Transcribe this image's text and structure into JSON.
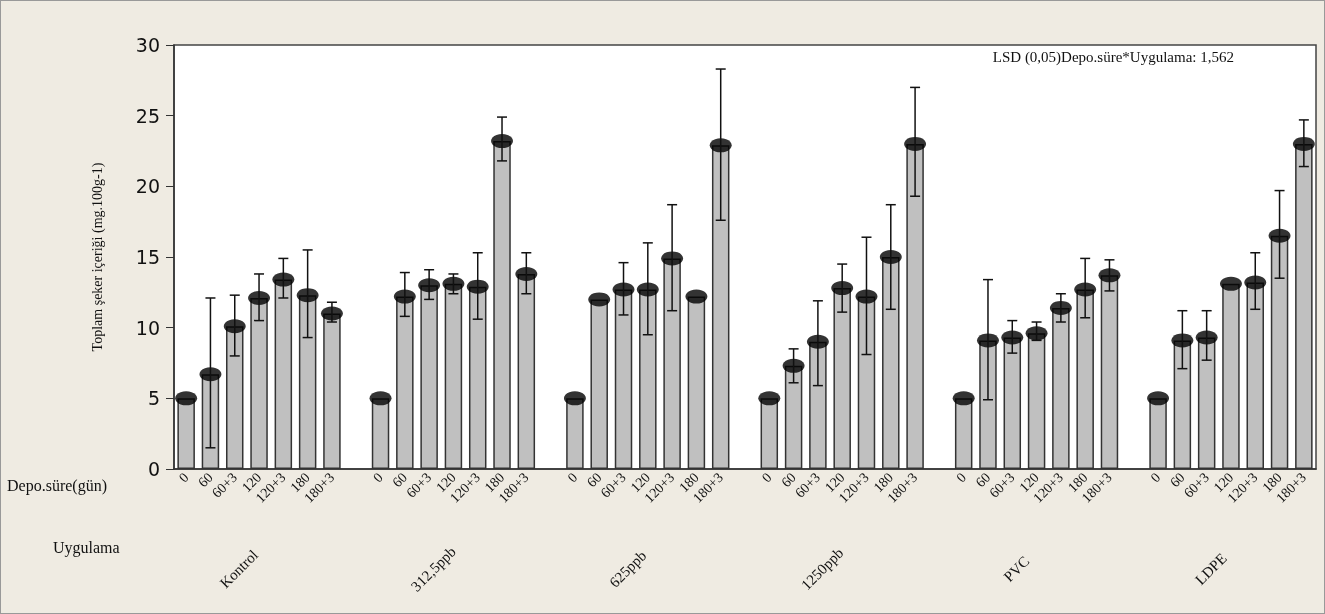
{
  "chart_data": {
    "type": "bar",
    "ylabel": "Toplam şeker içeriği (mg.100g-1)",
    "xlabel": "Depo.süre(gün)",
    "annotations": [
      "LSD (0,05)Depo.süre*Uygulama: 1,562",
      "Uygulama",
      "Kontrol",
      "312,5ppb",
      "625ppb",
      "1250ppb",
      "PVC",
      "LDPE"
    ],
    "categories": [
      "0",
      "60",
      "60+3",
      "120",
      "120+3",
      "180",
      "180+3",
      null,
      "0",
      "60",
      "60+3",
      "120",
      "120+3",
      "180",
      "180+3",
      null,
      "0",
      "60",
      "60+3",
      "120",
      "120+3",
      "180",
      "180+3",
      null,
      "0",
      "60",
      "60+3",
      "120",
      "120+3",
      "180",
      "180+3",
      null,
      "0",
      "60",
      "60+3",
      "120",
      "120+3",
      "180",
      "180+3",
      null,
      "0",
      "60",
      "60+3",
      "120",
      "120+3",
      "180",
      "180+3"
    ],
    "series": [
      {
        "color": "#c0c0c0",
        "values": [
          5.0,
          6.7,
          10.1,
          12.1,
          13.4,
          12.3,
          11.0,
          null,
          5.0,
          12.2,
          13.0,
          13.1,
          12.9,
          23.2,
          13.8,
          null,
          5.0,
          12.0,
          12.7,
          12.7,
          14.9,
          12.2,
          22.9,
          null,
          5.0,
          7.3,
          9.0,
          12.8,
          12.2,
          15.0,
          23.0,
          null,
          5.0,
          9.1,
          9.3,
          9.6,
          11.4,
          12.7,
          13.7,
          null,
          5.0,
          9.1,
          9.3,
          13.1,
          13.2,
          16.5,
          23.0
        ],
        "errors": [
          null,
          [
            1.5,
            12.1
          ],
          [
            8.0,
            12.3
          ],
          [
            10.5,
            13.8
          ],
          [
            12.1,
            14.9
          ],
          [
            9.3,
            15.5
          ],
          [
            10.4,
            11.8
          ],
          null,
          null,
          [
            10.8,
            13.9
          ],
          [
            12.0,
            14.1
          ],
          [
            12.4,
            13.8
          ],
          [
            10.6,
            15.3
          ],
          [
            21.8,
            24.9
          ],
          [
            12.4,
            15.3
          ],
          null,
          null,
          null,
          [
            10.9,
            14.6
          ],
          [
            9.5,
            16.0
          ],
          [
            11.2,
            18.7
          ],
          null,
          [
            17.6,
            28.3
          ],
          null,
          null,
          [
            6.1,
            8.5
          ],
          [
            5.9,
            11.9
          ],
          [
            11.1,
            14.5
          ],
          [
            8.1,
            16.4
          ],
          [
            11.3,
            18.7
          ],
          [
            19.3,
            27.0
          ],
          null,
          null,
          [
            4.9,
            13.4
          ],
          [
            8.2,
            10.5
          ],
          [
            9.1,
            10.4
          ],
          [
            10.4,
            12.4
          ],
          [
            10.7,
            14.9
          ],
          [
            12.6,
            14.8
          ],
          null,
          null,
          [
            7.1,
            11.2
          ],
          [
            7.7,
            11.2
          ],
          null,
          [
            11.3,
            15.3
          ],
          [
            13.5,
            19.7
          ],
          [
            21.4,
            24.7
          ]
        ]
      },
      {
        "type": "scatter",
        "color": "#000000",
        "values": [
          5.0,
          6.7,
          10.1,
          12.1,
          13.4,
          12.3,
          11.0,
          null,
          5.0,
          12.2,
          13.0,
          13.1,
          12.9,
          23.2,
          13.8,
          null,
          5.0,
          12.0,
          12.7,
          12.7,
          14.9,
          12.2,
          22.9,
          null,
          5.0,
          7.3,
          9.0,
          12.8,
          12.2,
          15.0,
          23.0,
          null,
          5.0,
          9.1,
          9.3,
          9.6,
          11.4,
          12.7,
          13.7,
          null,
          5.0,
          9.1,
          9.3,
          13.1,
          13.2,
          16.5,
          23.0
        ]
      }
    ],
    "ylim": [
      0,
      30
    ],
    "yticks": [
      0,
      5,
      10,
      15,
      20,
      25,
      30
    ],
    "grid": false,
    "marker": "circle"
  }
}
